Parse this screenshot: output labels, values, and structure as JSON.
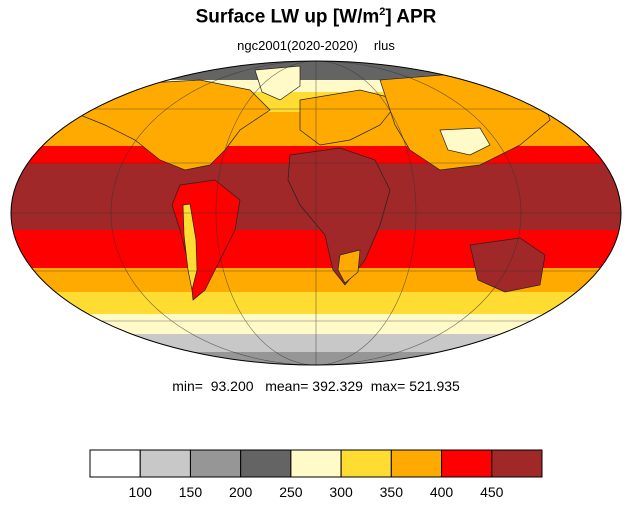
{
  "title": {
    "main": "Surface LW up [W/m",
    "superscript": "2",
    "after_superscript": "]  APR"
  },
  "subtitle": {
    "case": "ngc2001(2020-2020)",
    "variable": "rlus"
  },
  "stats": {
    "min_label": "min=",
    "min_value": "93.200",
    "mean_label": "mean=",
    "mean_value": "392.329",
    "max_label": "max=",
    "max_value": "521.935"
  },
  "colorbar": {
    "colors": [
      "#ffffff",
      "#c8c8c8",
      "#969696",
      "#646464",
      "#fffac8",
      "#ffdc32",
      "#ffaa00",
      "#ff0000",
      "#a02828"
    ],
    "labels": [
      "100",
      "150",
      "200",
      "250",
      "300",
      "350",
      "400",
      "450"
    ]
  },
  "map": {
    "projection": "mollweide",
    "band_colors": {
      "polar_north": "#646464",
      "pale": "#fffac8",
      "yellow": "#ffdc32",
      "orange": "#ffaa00",
      "red": "#ff0000",
      "dark_red": "#a02828",
      "antarctic_light": "#c8c8c8",
      "antarctic_mid": "#969696"
    }
  }
}
